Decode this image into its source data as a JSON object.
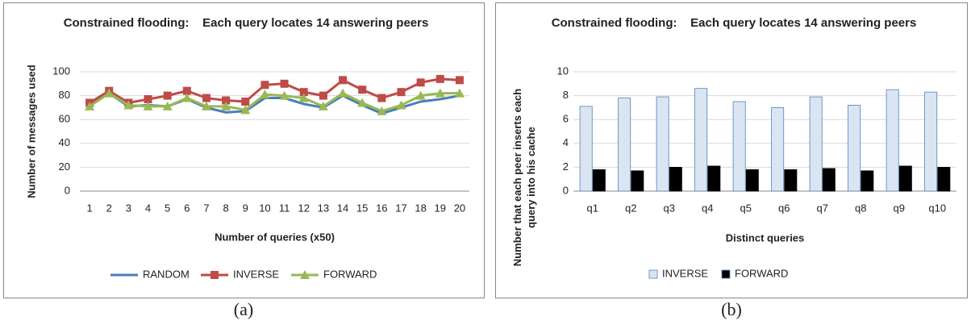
{
  "chart_data": [
    {
      "type": "line",
      "title": "Constrained flooding:    Each query locates 14 answering peers",
      "ylabel": "Number of messages used",
      "xlabel": "Number of queries (x50)",
      "categories": [
        "1",
        "2",
        "3",
        "4",
        "5",
        "6",
        "7",
        "8",
        "9",
        "10",
        "11",
        "12",
        "13",
        "14",
        "15",
        "16",
        "17",
        "18",
        "19",
        "20"
      ],
      "series": [
        {
          "name": "RANDOM",
          "color": "#4a7ebb",
          "marker": "none",
          "values": [
            72,
            82,
            71,
            72,
            71,
            77,
            70,
            66,
            67,
            78,
            78,
            73,
            70,
            80,
            72,
            65,
            70,
            75,
            77,
            80
          ]
        },
        {
          "name": "INVERSE",
          "color": "#be4b48",
          "marker": "square",
          "values": [
            74,
            84,
            74,
            77,
            80,
            84,
            78,
            76,
            75,
            89,
            90,
            83,
            80,
            93,
            85,
            78,
            83,
            91,
            94,
            93
          ]
        },
        {
          "name": "FORWARD",
          "color": "#98b954",
          "marker": "triangle",
          "values": [
            71,
            82,
            72,
            71,
            71,
            78,
            71,
            71,
            68,
            81,
            80,
            78,
            71,
            82,
            74,
            67,
            72,
            80,
            82,
            82
          ]
        }
      ],
      "ylim": [
        0,
        100
      ],
      "yticks": [
        0,
        20,
        40,
        60,
        80,
        100
      ],
      "grid": true,
      "legend": "bottom",
      "caption": "(a)"
    },
    {
      "type": "bar",
      "title": "Constrained flooding:    Each query locates 14 answering peers",
      "ylabel": "Number that each peer inserts each query into his cache",
      "xlabel": "Distinct queries",
      "categories": [
        "q1",
        "q2",
        "q3",
        "q4",
        "q5",
        "q6",
        "q7",
        "q8",
        "q9",
        "q10"
      ],
      "series": [
        {
          "name": "INVERSE",
          "color": "#dbe5f1",
          "values": [
            7.1,
            7.8,
            7.9,
            8.6,
            7.5,
            7.0,
            7.9,
            7.2,
            8.5,
            8.3
          ]
        },
        {
          "name": "FORWARD",
          "color": "#000000",
          "values": [
            1.8,
            1.7,
            2.0,
            2.1,
            1.8,
            1.8,
            1.9,
            1.7,
            2.1,
            2.0
          ]
        }
      ],
      "ylim": [
        0,
        10
      ],
      "yticks": [
        0,
        2,
        4,
        6,
        8,
        10
      ],
      "grid": true,
      "legend": "bottom",
      "caption": "(b)"
    }
  ]
}
